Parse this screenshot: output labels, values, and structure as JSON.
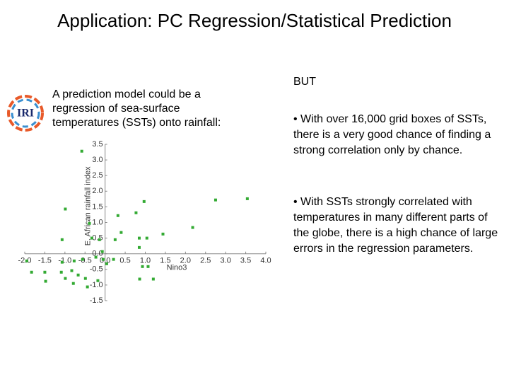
{
  "title": "Application: PC Regression/Statistical Prediction",
  "logo_text": "IRI",
  "left_text": "A prediction model could be a regression of sea-surface temperatures (SSTs) onto rainfall:",
  "right_heading": "BUT",
  "bullets": [
    "• With over 16,000 grid boxes of SSTs, there is a very good chance of finding a strong correlation only by chance.",
    "• With SSTs strongly correlated with temperatures in many different parts of the globe, there is a high chance of large errors in the regression parameters."
  ],
  "chart_data": {
    "type": "scatter",
    "x_label": "Nino3",
    "y_label": "E. African rainfall index",
    "color": "#33aa33",
    "x": [
      -0.58,
      -0.99,
      0.97,
      0.77,
      0.32,
      2.75,
      3.54,
      2.18,
      -0.39,
      0.4,
      1.44,
      0.85,
      1.04,
      -1.07,
      0.25,
      -0.14,
      -0.33,
      0.85,
      -0.07,
      -0.05,
      -0.23,
      0.21,
      -0.56,
      -0.77,
      -1.95,
      -1.07,
      0.04,
      0.93,
      1.07,
      -1.83,
      -1.5,
      -1.09,
      -0.83,
      -0.67,
      -0.99,
      -1.48,
      -0.49,
      -0.18,
      0.86,
      1.2,
      -0.79,
      -0.44
    ],
    "values": [
      3.28,
      1.43,
      1.67,
      1.31,
      1.22,
      1.72,
      1.76,
      0.84,
      0.97,
      0.68,
      0.63,
      0.5,
      0.5,
      0.45,
      0.45,
      0.45,
      0.5,
      0.2,
      0.07,
      -0.18,
      -0.11,
      -0.18,
      -0.18,
      -0.23,
      -0.23,
      -0.27,
      -0.32,
      -0.41,
      -0.41,
      -0.59,
      -0.59,
      -0.59,
      -0.54,
      -0.68,
      -0.79,
      -0.88,
      -0.79,
      -0.86,
      -0.81,
      -0.81,
      -0.95,
      -1.06
    ],
    "xlim": [
      -2.0,
      4.0
    ],
    "ylim": [
      -1.5,
      3.5
    ],
    "xticks": [
      {
        "value": -2,
        "label": "-2.0"
      },
      -1.5,
      {
        "value": -1,
        "label": "-1.0"
      },
      -0.5,
      {
        "value": 0,
        "label": "0.0"
      },
      0.5,
      {
        "value": 1,
        "label": "1.0"
      },
      1.5,
      {
        "value": 2,
        "label": "2.0"
      },
      2.5,
      {
        "value": 3,
        "label": "3.0"
      },
      3.5,
      {
        "value": 4,
        "label": "4.0"
      }
    ],
    "yticks": [
      {
        "value": 3.5,
        "label": "3.5"
      },
      {
        "value": 3,
        "label": "3.0"
      },
      2.5,
      {
        "value": 2,
        "label": "2.0"
      },
      1.5,
      {
        "value": 1,
        "label": "1.0"
      },
      0.5,
      {
        "value": 0,
        "label": "0.0"
      },
      -0.5,
      {
        "value": -1,
        "label": "-1.0"
      },
      -1.5
    ]
  }
}
